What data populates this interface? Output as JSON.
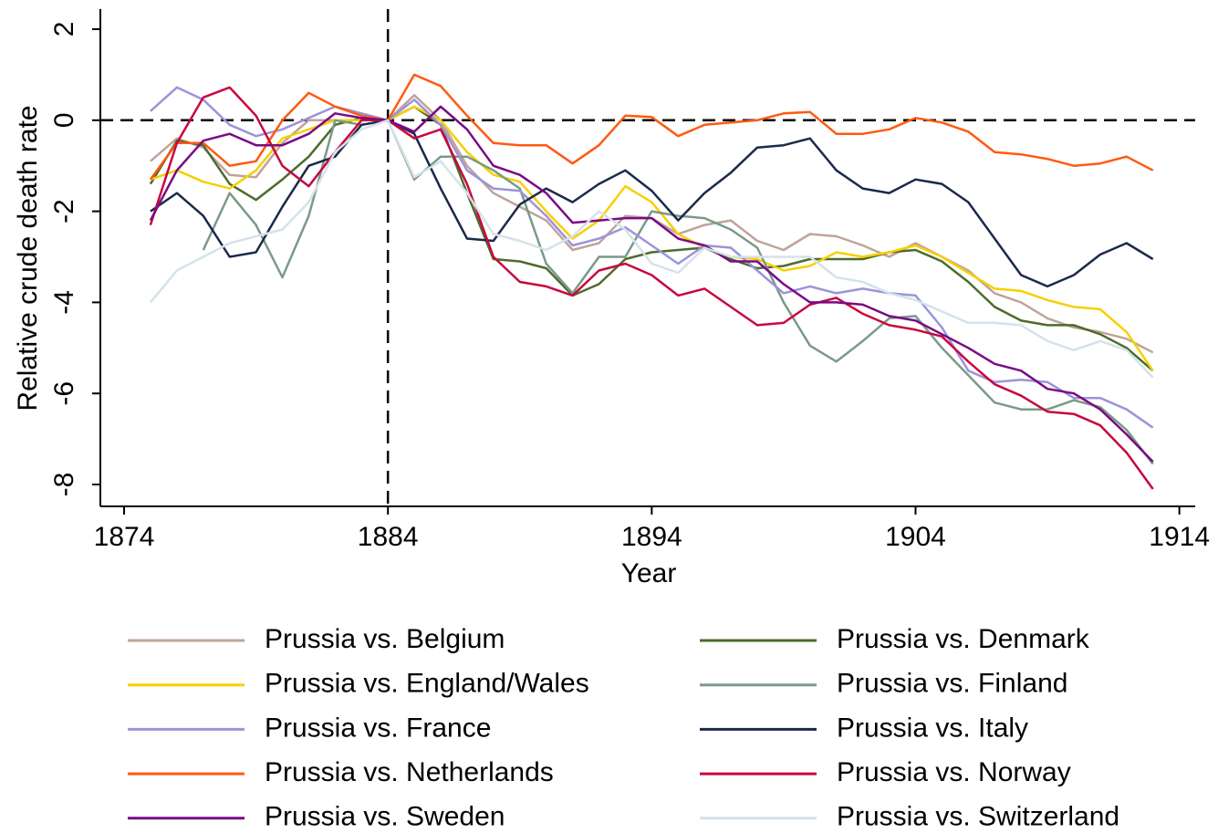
{
  "chart_data": {
    "type": "line",
    "y_label": "Relative crude death rate",
    "x_label": "Year",
    "x": [
      1875,
      1876,
      1877,
      1878,
      1879,
      1880,
      1881,
      1882,
      1883,
      1884,
      1885,
      1886,
      1887,
      1888,
      1889,
      1890,
      1891,
      1892,
      1893,
      1894,
      1895,
      1896,
      1897,
      1898,
      1899,
      1900,
      1901,
      1902,
      1903,
      1904,
      1905,
      1906,
      1907,
      1908,
      1909,
      1910,
      1911,
      1912,
      1913
    ],
    "xlim": [
      1873.1,
      1914.6
    ],
    "xticks": [
      1874,
      1884,
      1894,
      1904,
      1914
    ],
    "ylim": [
      -8.48,
      2.44
    ],
    "yticks": [
      -8,
      -6,
      -4,
      -2,
      0,
      2
    ],
    "vline": 1884,
    "hline": 0,
    "series": [
      {
        "name": "Prussia vs. Belgium",
        "color": "#c0a39c",
        "values": [
          -0.9,
          -0.4,
          -0.6,
          -1.2,
          -1.25,
          -0.5,
          0.0,
          0.0,
          0.0,
          0,
          0.55,
          0.0,
          -1.0,
          -1.6,
          -1.9,
          -2.2,
          -2.85,
          -2.7,
          -2.1,
          -2.15,
          -2.5,
          -2.3,
          -2.2,
          -2.65,
          -2.85,
          -2.5,
          -2.55,
          -2.75,
          -3.0,
          -2.7,
          -3.0,
          -3.3,
          -3.8,
          -4.0,
          -4.35,
          -4.55,
          -4.65,
          -4.8,
          -5.1
        ]
      },
      {
        "name": "Prussia vs. Denmark",
        "color": "#4e6b2c",
        "values": [
          -1.4,
          -0.45,
          -0.55,
          -1.4,
          -1.75,
          -1.3,
          -0.8,
          -0.1,
          0.05,
          0,
          0.3,
          -0.1,
          -1.6,
          -3.05,
          -3.1,
          -3.25,
          -3.85,
          -3.6,
          -3.05,
          -2.9,
          -2.85,
          -2.8,
          -3.05,
          -3.25,
          -3.2,
          -3.05,
          -3.05,
          -3.05,
          -2.9,
          -2.85,
          -3.1,
          -3.55,
          -4.1,
          -4.4,
          -4.5,
          -4.5,
          -4.7,
          -5.0,
          -5.5
        ]
      },
      {
        "name": "Prussia vs. England/Wales",
        "color": "#f7d000",
        "values": [
          -1.3,
          -1.1,
          -1.35,
          -1.5,
          -1.1,
          -0.4,
          -0.2,
          0.0,
          0.0,
          0,
          0.3,
          0.0,
          -0.7,
          -1.2,
          -1.35,
          -2.0,
          -2.6,
          -2.2,
          -1.45,
          -1.8,
          -2.5,
          -2.8,
          -3.0,
          -3.05,
          -3.3,
          -3.2,
          -2.9,
          -3.0,
          -2.9,
          -2.75,
          -3.0,
          -3.35,
          -3.7,
          -3.75,
          -3.95,
          -4.1,
          -4.15,
          -4.65,
          -5.5
        ]
      },
      {
        "name": "Prussia vs. Finland",
        "color": "#7a9a88",
        "values": [
          null,
          null,
          -2.85,
          -1.6,
          -2.3,
          -3.45,
          -2.1,
          0.0,
          -0.1,
          0,
          -1.3,
          -0.8,
          -0.8,
          -1.1,
          -1.5,
          -3.15,
          -3.8,
          -3.0,
          -3.0,
          -2.0,
          -2.1,
          -2.15,
          -2.4,
          -2.8,
          -4.0,
          -4.95,
          -5.3,
          -4.85,
          -4.35,
          -4.3,
          -5.0,
          -5.6,
          -6.2,
          -6.35,
          -6.35,
          -6.15,
          -6.3,
          -6.8,
          -7.55
        ]
      },
      {
        "name": "Prussia vs. France",
        "color": "#9c94d8",
        "values": [
          0.2,
          0.72,
          0.45,
          -0.1,
          -0.35,
          -0.2,
          0.05,
          0.3,
          0.15,
          0,
          0.45,
          -0.1,
          -1.1,
          -1.5,
          -1.55,
          -2.1,
          -2.75,
          -2.6,
          -2.35,
          -2.75,
          -3.15,
          -2.75,
          -2.8,
          -3.3,
          -3.8,
          -3.65,
          -3.8,
          -3.7,
          -3.8,
          -3.85,
          -4.55,
          -5.5,
          -5.75,
          -5.7,
          -5.75,
          -6.1,
          -6.1,
          -6.35,
          -6.75
        ]
      },
      {
        "name": "Prussia vs. Italy",
        "color": "#1b2a4a",
        "values": [
          -2.0,
          -1.6,
          -2.1,
          -3.0,
          -2.9,
          -1.9,
          -1.0,
          -0.8,
          -0.1,
          0,
          -0.3,
          -1.5,
          -2.6,
          -2.65,
          -1.85,
          -1.5,
          -1.8,
          -1.4,
          -1.1,
          -1.55,
          -2.2,
          -1.6,
          -1.15,
          -0.6,
          -0.55,
          -0.4,
          -1.1,
          -1.5,
          -1.6,
          -1.3,
          -1.4,
          -1.8,
          -2.6,
          -3.4,
          -3.65,
          -3.4,
          -2.95,
          -2.7,
          -3.05
        ]
      },
      {
        "name": "Prussia vs. Netherlands",
        "color": "#ff5a10",
        "values": [
          -1.3,
          -0.5,
          -0.5,
          -1.0,
          -0.9,
          0.0,
          0.6,
          0.3,
          0.1,
          0,
          1.0,
          0.75,
          0.1,
          -0.5,
          -0.55,
          -0.55,
          -0.95,
          -0.55,
          0.1,
          0.07,
          -0.35,
          -0.1,
          -0.05,
          0.0,
          0.15,
          0.18,
          -0.3,
          -0.3,
          -0.2,
          0.05,
          -0.05,
          -0.25,
          -0.7,
          -0.75,
          -0.85,
          -1.0,
          -0.95,
          -0.8,
          -1.1
        ]
      },
      {
        "name": "Prussia vs. Norway",
        "color": "#c8083f",
        "values": [
          -2.3,
          -0.5,
          0.5,
          0.72,
          0.1,
          -1.0,
          -1.45,
          -0.7,
          0.0,
          0,
          -0.4,
          -0.2,
          -1.4,
          -3.0,
          -3.55,
          -3.65,
          -3.85,
          -3.3,
          -3.15,
          -3.4,
          -3.85,
          -3.7,
          -4.1,
          -4.5,
          -4.45,
          -4.05,
          -3.9,
          -4.25,
          -4.5,
          -4.6,
          -4.75,
          -5.3,
          -5.8,
          -6.05,
          -6.4,
          -6.45,
          -6.7,
          -7.3,
          -8.1
        ]
      },
      {
        "name": "Prussia vs. Sweden",
        "color": "#7a0a85",
        "values": [
          -2.2,
          -1.1,
          -0.45,
          -0.3,
          -0.55,
          -0.55,
          -0.3,
          0.15,
          0.05,
          0,
          -0.25,
          0.3,
          -0.2,
          -1.0,
          -1.2,
          -1.6,
          -2.25,
          -2.2,
          -2.15,
          -2.15,
          -2.6,
          -2.75,
          -3.1,
          -3.1,
          -3.6,
          -4.0,
          -4.0,
          -4.05,
          -4.3,
          -4.4,
          -4.7,
          -5.0,
          -5.35,
          -5.5,
          -5.9,
          -6.0,
          -6.35,
          -6.9,
          -7.5
        ]
      },
      {
        "name": "Prussia vs. Switzerland",
        "color": "#d5e2ea",
        "values": [
          -4.0,
          -3.3,
          -3.0,
          -2.7,
          -2.55,
          -2.4,
          -1.8,
          -0.7,
          -0.2,
          0,
          -1.25,
          -0.9,
          -1.6,
          -2.5,
          -2.65,
          -2.85,
          -2.55,
          -2.0,
          -2.4,
          -3.15,
          -3.35,
          -2.8,
          -3.0,
          -3.0,
          -3.0,
          -3.0,
          -3.45,
          -3.55,
          -3.8,
          -3.95,
          -4.2,
          -4.45,
          -4.45,
          -4.5,
          -4.85,
          -5.05,
          -4.85,
          -5.05,
          -5.65
        ]
      }
    ]
  }
}
